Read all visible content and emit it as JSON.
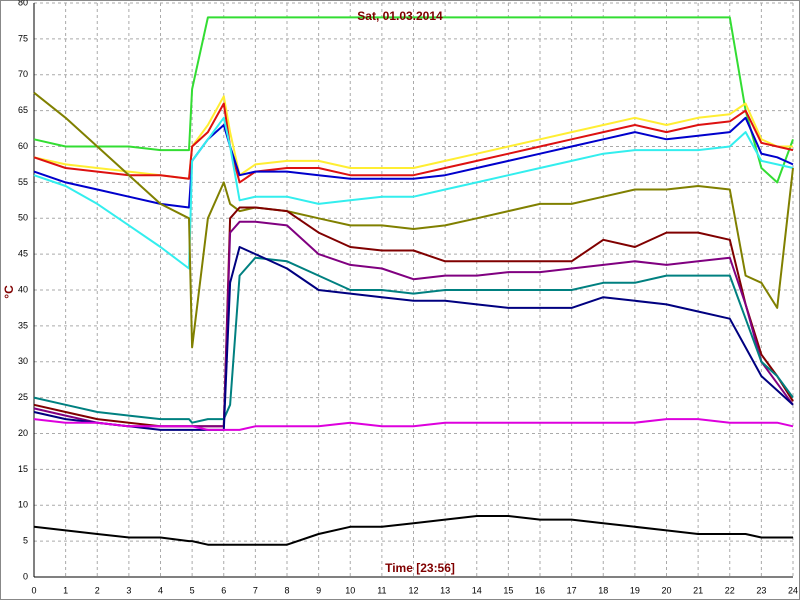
{
  "chart_data": {
    "type": "line",
    "title": "Sat, 01.03.2014",
    "x_label": "Time [23:56]",
    "y_label": "°C",
    "x": [
      0,
      1,
      2,
      3,
      4,
      4.9,
      5,
      5.5,
      6,
      6.2,
      6.5,
      7,
      8,
      9,
      10,
      11,
      12,
      13,
      14,
      15,
      16,
      17,
      18,
      19,
      20,
      21,
      22,
      22.5,
      23,
      23.5,
      24
    ],
    "xlim": [
      0,
      24
    ],
    "xticks": [
      0,
      1,
      2,
      3,
      4,
      5,
      6,
      7,
      8,
      9,
      10,
      11,
      12,
      13,
      14,
      15,
      16,
      17,
      18,
      19,
      20,
      21,
      22,
      23,
      24
    ],
    "ylim": [
      0,
      80
    ],
    "yticks": [
      0,
      5,
      10,
      15,
      20,
      25,
      30,
      35,
      40,
      45,
      50,
      55,
      60,
      65,
      70,
      75,
      80
    ],
    "grid": true,
    "series": [
      {
        "color": "#33dd33",
        "values": [
          61,
          60,
          60,
          60,
          59.5,
          59.5,
          68,
          78,
          78,
          78,
          78,
          78,
          78,
          78,
          78,
          78,
          78,
          78,
          78,
          78,
          78,
          78,
          78,
          78,
          78,
          78,
          78,
          65,
          57,
          55,
          61
        ]
      },
      {
        "color": "#ffee33",
        "values": [
          58.5,
          57.5,
          57,
          56.5,
          56,
          55.5,
          60,
          63,
          67,
          62,
          56,
          57.5,
          58,
          58,
          57,
          57,
          57,
          58,
          59,
          60,
          61,
          62,
          63,
          64,
          63,
          64,
          64.5,
          66,
          61,
          60,
          60
        ]
      },
      {
        "color": "#dd1111",
        "values": [
          58.5,
          57,
          56.5,
          56,
          56,
          55.5,
          60,
          62,
          66,
          60,
          55,
          56.5,
          57,
          57,
          56,
          56,
          56,
          57,
          58,
          59,
          60,
          61,
          62,
          63,
          62,
          63,
          63.5,
          65,
          60.5,
          60,
          59.5
        ]
      },
      {
        "color": "#0000cc",
        "values": [
          56.5,
          55,
          54,
          53,
          52,
          51.5,
          58,
          61,
          63,
          60,
          56,
          56.5,
          56.5,
          56,
          55.5,
          55.5,
          55.5,
          56,
          57,
          58,
          59,
          60,
          61,
          62,
          61,
          61.5,
          62,
          64,
          59,
          58.5,
          57.5
        ]
      },
      {
        "color": "#33eeee",
        "values": [
          56,
          54.5,
          52,
          49,
          46,
          43,
          58,
          61,
          64,
          60,
          52.5,
          53,
          53,
          52,
          52.5,
          53,
          53,
          54,
          55,
          56,
          57,
          58,
          59,
          59.5,
          59.5,
          59.5,
          60,
          62,
          58,
          57.5,
          57
        ]
      },
      {
        "color": "#808000",
        "values": [
          67.5,
          64,
          60,
          56,
          52,
          50,
          32,
          50,
          55,
          52,
          51,
          51.5,
          51,
          50,
          49,
          49,
          48.5,
          49,
          50,
          51,
          52,
          52,
          53,
          54,
          54,
          54.5,
          54,
          42,
          41,
          37.5,
          57
        ]
      },
      {
        "color": "#800000",
        "values": [
          24,
          23,
          22,
          21.5,
          21,
          21,
          21,
          21,
          21,
          50,
          51.5,
          51.5,
          51,
          48,
          46,
          45.5,
          45.5,
          44,
          44,
          44,
          44,
          44,
          47,
          46,
          48,
          48,
          47,
          38,
          31,
          28,
          24.5
        ]
      },
      {
        "color": "#800080",
        "values": [
          23.5,
          22.5,
          21.5,
          21,
          21,
          21,
          21,
          21,
          21,
          48,
          49.5,
          49.5,
          49,
          45,
          43.5,
          43,
          41.5,
          42,
          42,
          42.5,
          42.5,
          43,
          43.5,
          44,
          43.5,
          44,
          44.5,
          38,
          30,
          27,
          24
        ]
      },
      {
        "color": "#008080",
        "values": [
          25,
          24,
          23,
          22.5,
          22,
          22,
          21.5,
          22,
          22,
          24,
          42,
          44.5,
          44,
          42,
          40,
          40,
          39.5,
          40,
          40,
          40,
          40,
          40,
          41,
          41,
          42,
          42,
          42,
          36,
          30,
          28,
          25
        ]
      },
      {
        "color": "#000080",
        "values": [
          23,
          22,
          21.5,
          21,
          20.5,
          20.5,
          20.5,
          20.5,
          20.5,
          41,
          46,
          45,
          43,
          40,
          39.5,
          39,
          38.5,
          38.5,
          38,
          37.5,
          37.5,
          37.5,
          39,
          38.5,
          38,
          37,
          36,
          32,
          28,
          26,
          24
        ]
      },
      {
        "color": "#dd00dd",
        "values": [
          22,
          21.5,
          21.5,
          21,
          21,
          21,
          21,
          20.5,
          20.5,
          20.5,
          20.5,
          21,
          21,
          21,
          21.5,
          21,
          21,
          21.5,
          21.5,
          21.5,
          21.5,
          21.5,
          21.5,
          21.5,
          22,
          22,
          21.5,
          21.5,
          21.5,
          21.5,
          21
        ]
      },
      {
        "color": "#000000",
        "values": [
          7,
          6.5,
          6,
          5.5,
          5.5,
          5,
          5,
          4.5,
          4.5,
          4.5,
          4.5,
          4.5,
          4.5,
          6,
          7,
          7,
          7.5,
          8,
          8.5,
          8.5,
          8,
          8,
          7.5,
          7,
          6.5,
          6,
          6,
          6,
          5.5,
          5.5,
          5.5
        ]
      }
    ]
  }
}
